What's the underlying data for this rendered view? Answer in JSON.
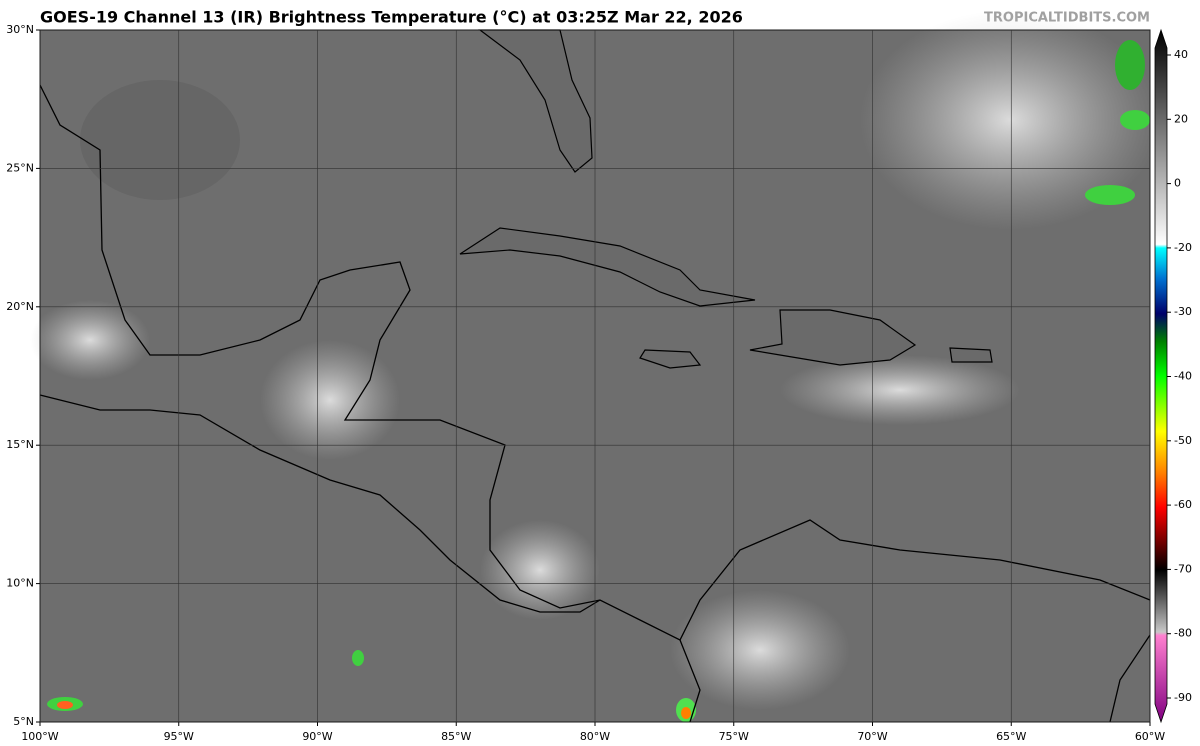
{
  "header": {
    "title": "GOES-19 Channel 13 (IR) Brightness Temperature (°C) at 03:25Z Mar 22, 2026",
    "credit": "TROPICALTIDBITS.COM"
  },
  "map": {
    "xlim": [
      -100,
      -60
    ],
    "ylim": [
      5,
      30
    ],
    "xticks": [
      {
        "value": -100,
        "label": "100°W"
      },
      {
        "value": -95,
        "label": "95°W"
      },
      {
        "value": -90,
        "label": "90°W"
      },
      {
        "value": -85,
        "label": "85°W"
      },
      {
        "value": -80,
        "label": "80°W"
      },
      {
        "value": -75,
        "label": "75°W"
      },
      {
        "value": -70,
        "label": "70°W"
      },
      {
        "value": -65,
        "label": "65°W"
      },
      {
        "value": -60,
        "label": "60°W"
      }
    ],
    "yticks": [
      {
        "value": 5,
        "label": "5°N"
      },
      {
        "value": 10,
        "label": "10°N"
      },
      {
        "value": 15,
        "label": "15°N"
      },
      {
        "value": 20,
        "label": "20°N"
      },
      {
        "value": 25,
        "label": "25°N"
      },
      {
        "value": 30,
        "label": "30°N"
      }
    ]
  },
  "colorbar": {
    "ticks": [
      40,
      20,
      0,
      -20,
      -30,
      -40,
      -50,
      -60,
      -70,
      -80,
      -90
    ]
  }
}
